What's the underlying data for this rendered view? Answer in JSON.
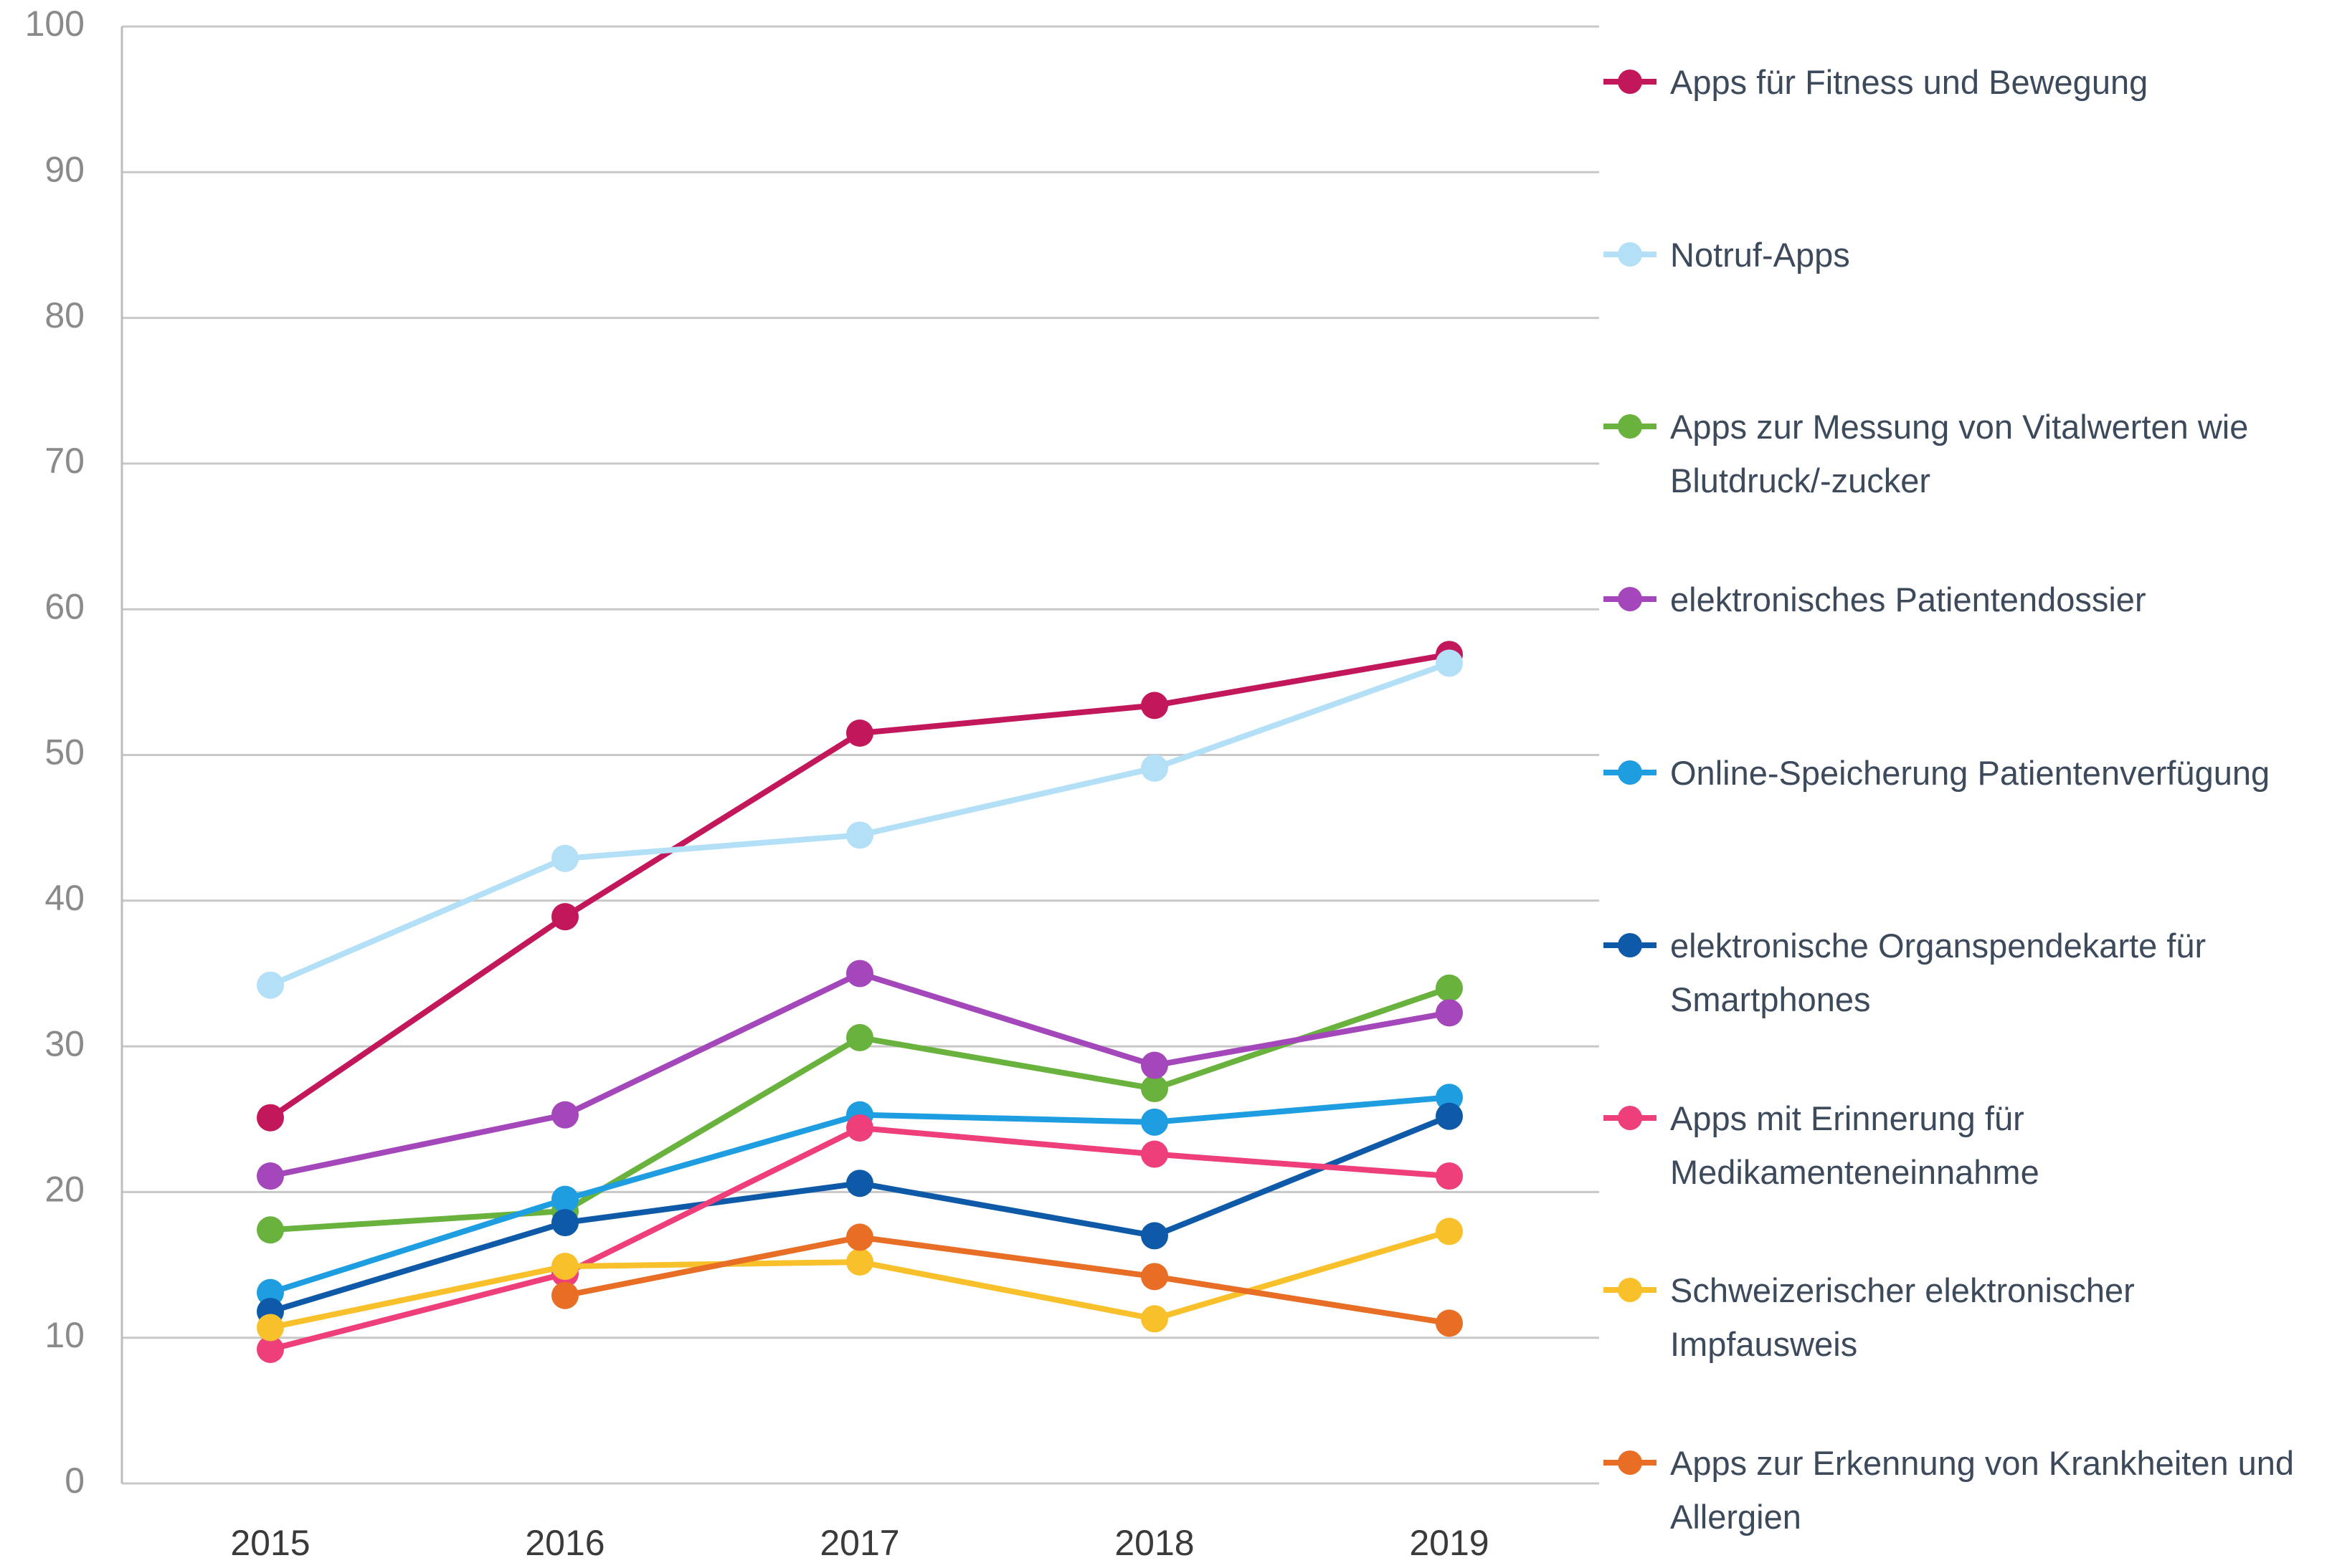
{
  "chart_data": {
    "type": "line",
    "categories": [
      "2015",
      "2016",
      "2017",
      "2018",
      "2019"
    ],
    "ylim": [
      0,
      100
    ],
    "yticks": [
      0,
      10,
      20,
      30,
      40,
      50,
      60,
      70,
      80,
      90,
      100
    ],
    "grid": true,
    "series": [
      {
        "name": "Apps für Fitness und Bewegung",
        "color": "#c2185b",
        "values": [
          25.1,
          38.9,
          51.5,
          53.4,
          56.9
        ]
      },
      {
        "name": "Notruf-Apps",
        "color": "#b3e0f7",
        "values": [
          34.2,
          42.9,
          44.5,
          49.1,
          56.3
        ]
      },
      {
        "name": "Apps zur Messung von Vitalwerten wie Blutdruck/-zucker",
        "color": "#6ab23e",
        "values": [
          17.4,
          18.7,
          30.6,
          27.1,
          34.0
        ]
      },
      {
        "name": "elektronisches Patientendossier",
        "color": "#a347ba",
        "values": [
          21.1,
          25.3,
          35.0,
          28.7,
          32.3
        ]
      },
      {
        "name": "Online-Speicherung Patientenverfügung",
        "color": "#1e9de0",
        "values": [
          13.1,
          19.5,
          25.3,
          24.8,
          26.5
        ]
      },
      {
        "name": "elektronische Organspendekarte für Smartphones",
        "color": "#0f5aa8",
        "values": [
          11.8,
          17.9,
          20.6,
          17.0,
          25.2
        ]
      },
      {
        "name": "Apps mit Erinnerung für Medikamenteneinnahme",
        "color": "#ee3f7a",
        "values": [
          9.2,
          14.4,
          24.4,
          22.6,
          21.1
        ]
      },
      {
        "name": "Schweizerischer elektronischer Impfausweis",
        "color": "#f8c12c",
        "values": [
          10.7,
          14.9,
          15.2,
          11.3,
          17.3
        ]
      },
      {
        "name": "Apps zur Erkennung von Krankheiten und Allergien",
        "color": "#e86d25",
        "values": [
          null,
          12.9,
          16.9,
          14.2,
          11.0
        ]
      }
    ]
  }
}
